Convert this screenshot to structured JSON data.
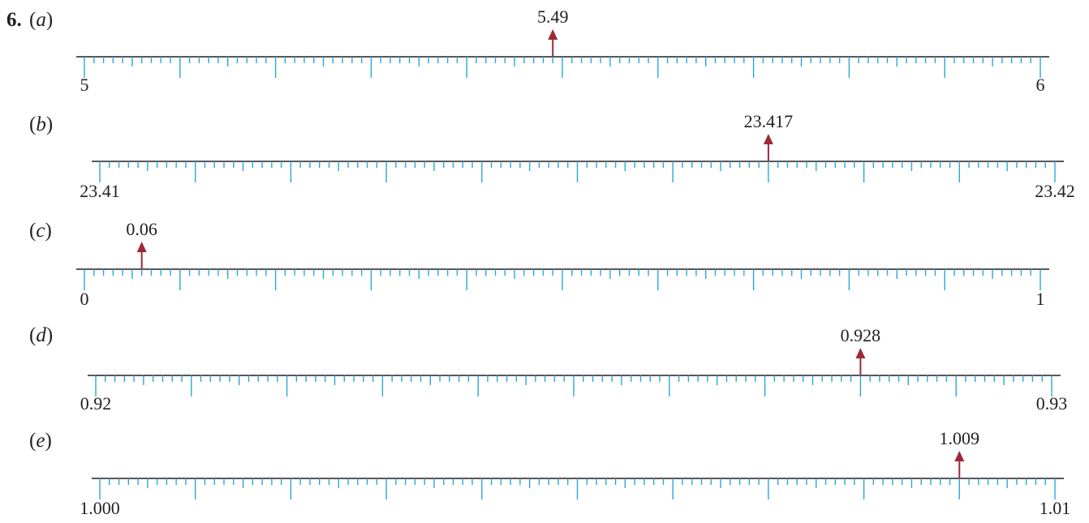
{
  "problem_number": "6.",
  "colors": {
    "axis": "#231f20",
    "ticks": "#29a8d6",
    "arrow": "#9b2a37",
    "text": "#231f20"
  },
  "chart_data": [
    {
      "type": "number-line",
      "part": "a",
      "start_label": "5",
      "end_label": "6",
      "start": 5,
      "end": 6,
      "subdivisions": 100,
      "major_every": 10,
      "marked_value": 5.49,
      "marked_label": "5.49"
    },
    {
      "type": "number-line",
      "part": "b",
      "start_label": "23.41",
      "end_label": "23.42",
      "start": 23.41,
      "end": 23.42,
      "subdivisions": 100,
      "major_every": 10,
      "marked_value": 23.417,
      "marked_label": "23.417"
    },
    {
      "type": "number-line",
      "part": "c",
      "start_label": "0",
      "end_label": "1",
      "start": 0,
      "end": 1,
      "subdivisions": 100,
      "major_every": 10,
      "marked_value": 0.06,
      "marked_label": "0.06"
    },
    {
      "type": "number-line",
      "part": "d",
      "start_label": "0.92",
      "end_label": "0.93",
      "start": 0.92,
      "end": 0.93,
      "subdivisions": 100,
      "major_every": 10,
      "marked_value": 0.928,
      "marked_label": "0.928"
    },
    {
      "type": "number-line",
      "part": "e",
      "start_label": "1.000",
      "end_label": "1.01",
      "start": 1.0,
      "end": 1.01,
      "subdivisions": 100,
      "major_every": 10,
      "marked_value": 1.009,
      "marked_label": "1.009"
    }
  ]
}
